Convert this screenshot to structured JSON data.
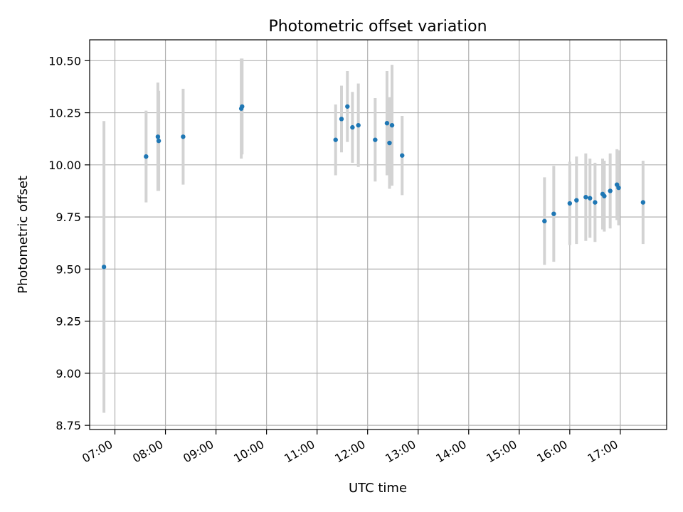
{
  "chart_data": {
    "type": "scatter",
    "title": "Photometric offset variation",
    "xlabel": "UTC time",
    "ylabel": "Photometric offset",
    "grid": true,
    "legend": "none",
    "colors": {
      "point": "#1f77b4",
      "errorbar": "#d3d3d3",
      "grid": "#b0b0b0"
    },
    "x_range": [
      "06:30",
      "17:55"
    ],
    "y_range": [
      8.73,
      10.6
    ],
    "x_ticks": [
      "07:00",
      "08:00",
      "09:00",
      "10:00",
      "11:00",
      "12:00",
      "13:00",
      "14:00",
      "15:00",
      "16:00",
      "17:00"
    ],
    "y_ticks": [
      "8.75",
      "9.00",
      "9.25",
      "9.50",
      "9.75",
      "10.00",
      "10.25",
      "10.50"
    ],
    "points": [
      {
        "x": "06:47",
        "y": 9.51,
        "err": 0.7
      },
      {
        "x": "07:37",
        "y": 10.04,
        "err": 0.22
      },
      {
        "x": "07:51",
        "y": 10.135,
        "err": 0.26
      },
      {
        "x": "07:52",
        "y": 10.115,
        "err": 0.24
      },
      {
        "x": "08:21",
        "y": 10.135,
        "err": 0.23
      },
      {
        "x": "09:30",
        "y": 10.27,
        "err": 0.24
      },
      {
        "x": "09:31",
        "y": 10.28,
        "err": 0.23
      },
      {
        "x": "11:22",
        "y": 10.12,
        "err": 0.17
      },
      {
        "x": "11:29",
        "y": 10.22,
        "err": 0.16
      },
      {
        "x": "11:36",
        "y": 10.28,
        "err": 0.17
      },
      {
        "x": "11:42",
        "y": 10.18,
        "err": 0.17
      },
      {
        "x": "11:49",
        "y": 10.19,
        "err": 0.2
      },
      {
        "x": "12:09",
        "y": 10.12,
        "err": 0.2
      },
      {
        "x": "12:23",
        "y": 10.2,
        "err": 0.25
      },
      {
        "x": "12:26",
        "y": 10.105,
        "err": 0.22
      },
      {
        "x": "12:29",
        "y": 10.19,
        "err": 0.29
      },
      {
        "x": "12:41",
        "y": 10.045,
        "err": 0.19
      },
      {
        "x": "15:30",
        "y": 9.73,
        "err": 0.21
      },
      {
        "x": "15:41",
        "y": 9.765,
        "err": 0.23
      },
      {
        "x": "16:00",
        "y": 9.815,
        "err": 0.2
      },
      {
        "x": "16:08",
        "y": 9.83,
        "err": 0.21
      },
      {
        "x": "16:19",
        "y": 9.845,
        "err": 0.21
      },
      {
        "x": "16:24",
        "y": 9.84,
        "err": 0.19
      },
      {
        "x": "16:30",
        "y": 9.82,
        "err": 0.19
      },
      {
        "x": "16:39",
        "y": 9.86,
        "err": 0.17
      },
      {
        "x": "16:41",
        "y": 9.85,
        "err": 0.17
      },
      {
        "x": "16:48",
        "y": 9.875,
        "err": 0.18
      },
      {
        "x": "16:56",
        "y": 9.905,
        "err": 0.17
      },
      {
        "x": "16:58",
        "y": 9.89,
        "err": 0.18
      },
      {
        "x": "17:27",
        "y": 9.82,
        "err": 0.2
      }
    ]
  }
}
